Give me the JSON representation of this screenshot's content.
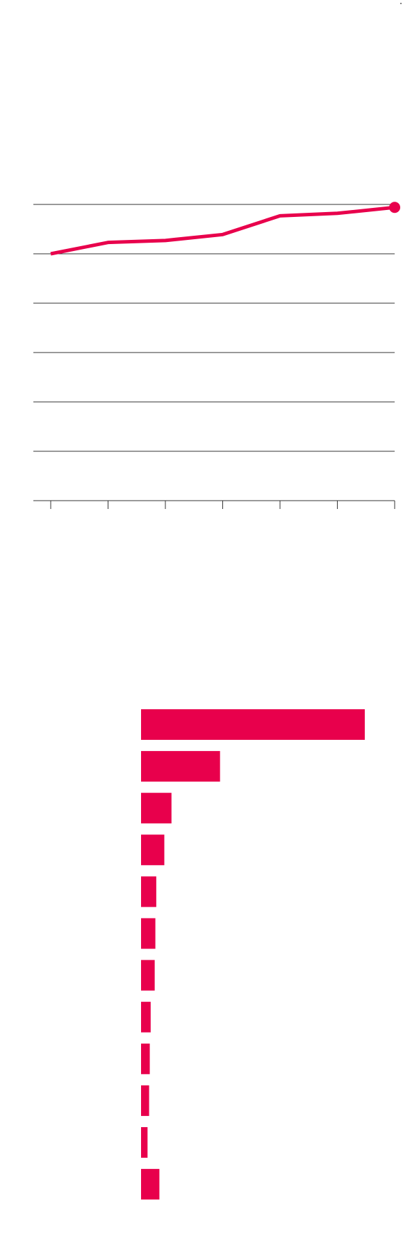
{
  "chart_data": [
    {
      "type": "line",
      "x": [
        1,
        2,
        3,
        4,
        5,
        6,
        7
      ],
      "series": [
        {
          "values": [
            1.0,
            1.23,
            1.27,
            1.39,
            1.77,
            1.82,
            1.94
          ]
        }
      ],
      "ylim": [
        -4,
        2
      ],
      "gridlines": 7,
      "grid": true,
      "end_marker": true,
      "color": "#e8004c"
    },
    {
      "type": "bar",
      "orientation": "horizontal",
      "categories": [
        "",
        "",
        "",
        "",
        "",
        "",
        "",
        "",
        "",
        "",
        "",
        ""
      ],
      "values": [
        100,
        35.3,
        13.6,
        10.4,
        6.8,
        6.4,
        6.1,
        4.3,
        3.9,
        3.6,
        2.9,
        8.2
      ],
      "color": "#e8004c"
    }
  ]
}
